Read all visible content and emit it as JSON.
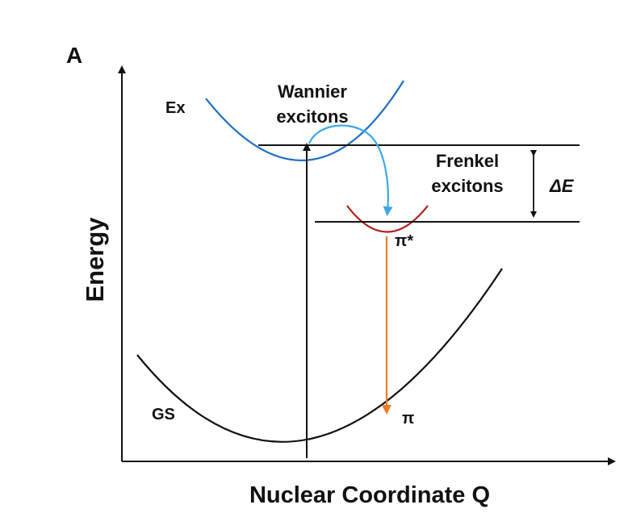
{
  "panel_label": "A",
  "axes": {
    "y_label": "Energy",
    "x_label": "Nuclear Coordinate Q"
  },
  "labels": {
    "ex": "Ex",
    "wannier_line1": "Wannier",
    "wannier_line2": "excitons",
    "frenkel_line1": "Frenkel",
    "frenkel_line2": "excitons",
    "delta_e": "ΔE",
    "pi_star": "π*",
    "gs": "GS",
    "pi": "π"
  },
  "colors": {
    "axis": "#111111",
    "ground_state_curve": "#111111",
    "wannier_curve": "#1f6fc4",
    "frenkel_curve": "#b31b1b",
    "transfer_arrow": "#3aa7e8",
    "emission_arrow": "#f07a24",
    "excitation_arrow": "#111111"
  }
}
